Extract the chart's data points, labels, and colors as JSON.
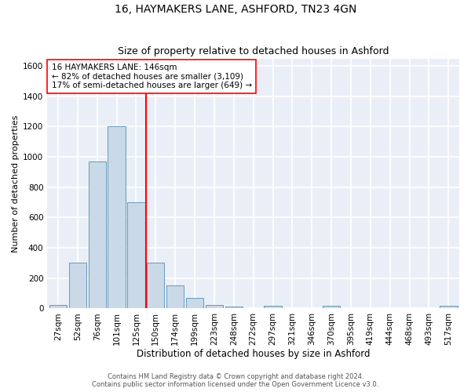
{
  "title1": "16, HAYMAKERS LANE, ASHFORD, TN23 4GN",
  "title2": "Size of property relative to detached houses in Ashford",
  "xlabel": "Distribution of detached houses by size in Ashford",
  "ylabel": "Number of detached properties",
  "categories": [
    "27sqm",
    "52sqm",
    "76sqm",
    "101sqm",
    "125sqm",
    "150sqm",
    "174sqm",
    "199sqm",
    "223sqm",
    "248sqm",
    "272sqm",
    "297sqm",
    "321sqm",
    "346sqm",
    "370sqm",
    "395sqm",
    "419sqm",
    "444sqm",
    "468sqm",
    "493sqm",
    "517sqm"
  ],
  "values": [
    20,
    300,
    970,
    1200,
    700,
    300,
    150,
    70,
    25,
    10,
    0,
    15,
    0,
    0,
    15,
    0,
    0,
    0,
    0,
    0,
    15
  ],
  "bar_color": "#c9d9e8",
  "bar_edge_color": "#6699bb",
  "vline_x_index": 5,
  "vline_color": "red",
  "annotation_text": "16 HAYMAKERS LANE: 146sqm\n← 82% of detached houses are smaller (3,109)\n17% of semi-detached houses are larger (649) →",
  "annotation_box_color": "white",
  "annotation_box_edge": "red",
  "ylim": [
    0,
    1650
  ],
  "yticks": [
    0,
    200,
    400,
    600,
    800,
    1000,
    1200,
    1400,
    1600
  ],
  "footer1": "Contains HM Land Registry data © Crown copyright and database right 2024.",
  "footer2": "Contains public sector information licensed under the Open Government Licence v3.0.",
  "bg_color": "#eaeff7",
  "grid_color": "white",
  "title1_fontsize": 10,
  "title2_fontsize": 9,
  "xlabel_fontsize": 8.5,
  "ylabel_fontsize": 8,
  "tick_fontsize": 7.5,
  "footer_fontsize": 6,
  "annotation_fontsize": 7.5
}
